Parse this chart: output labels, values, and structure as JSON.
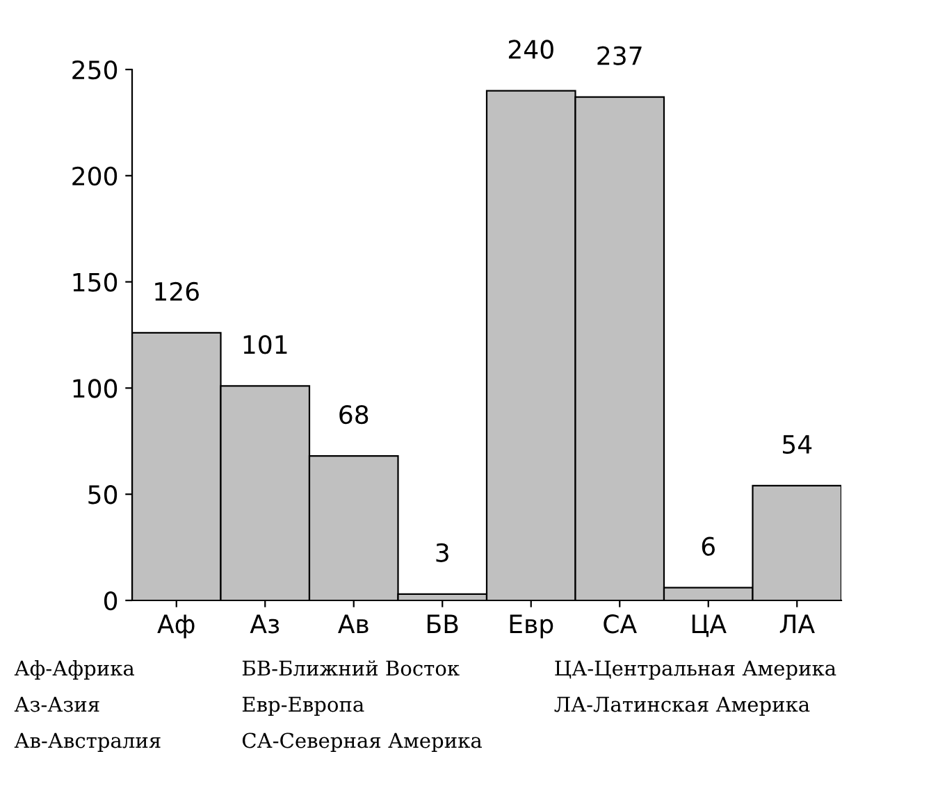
{
  "chart_data": {
    "type": "bar",
    "categories": [
      "Аф",
      "Аз",
      "Ав",
      "БВ",
      "Евр",
      "СА",
      "ЦА",
      "ЛА"
    ],
    "values": [
      126,
      101,
      68,
      3,
      240,
      237,
      6,
      54
    ],
    "color": "#c0c0c0",
    "ylim": [
      0,
      250
    ],
    "yticks": [
      0,
      50,
      100,
      150,
      200,
      250
    ],
    "grid": false,
    "data_labels": true,
    "annotations": [
      "Аф-Африка",
      "Аз-Азия",
      "Ав-Австралия",
      "БВ-Ближний Восток",
      "Евр-Европа",
      "СА-Северная Америка",
      "ЦА-Центральная Америка",
      "ЛА-Латинская Америка"
    ]
  }
}
